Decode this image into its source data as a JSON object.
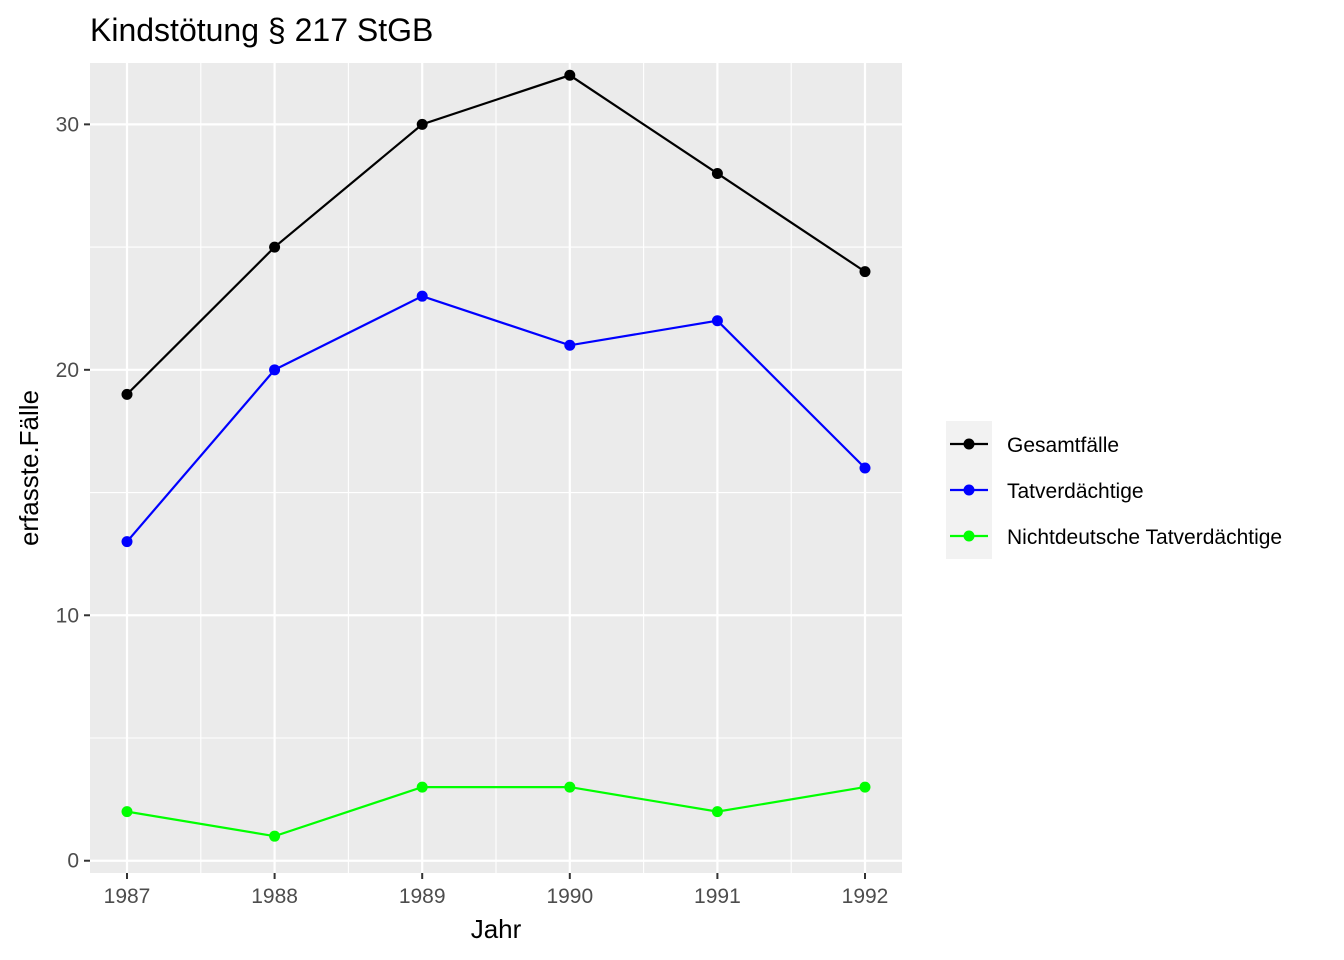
{
  "chart_data": {
    "type": "line",
    "title": "Kindstötung § 217 StGB",
    "xlabel": "Jahr",
    "ylabel": "erfasste.Fälle",
    "categories": [
      "1987",
      "1988",
      "1989",
      "1990",
      "1991",
      "1992"
    ],
    "ylim": [
      -0.5,
      32.5
    ],
    "yticks": [
      "0",
      "10",
      "20",
      "30"
    ],
    "grid": true,
    "legend_position": "right",
    "series": [
      {
        "name": "Gesamtfälle",
        "color": "#000000",
        "values": [
          19,
          25,
          30,
          32,
          28,
          24
        ]
      },
      {
        "name": "Tatverdächtige",
        "color": "#0000ff",
        "values": [
          13,
          20,
          23,
          21,
          22,
          16
        ]
      },
      {
        "name": "Nichtdeutsche Tatverdächtige",
        "color": "#00ff00",
        "values": [
          2,
          1,
          3,
          3,
          2,
          3
        ]
      }
    ]
  }
}
